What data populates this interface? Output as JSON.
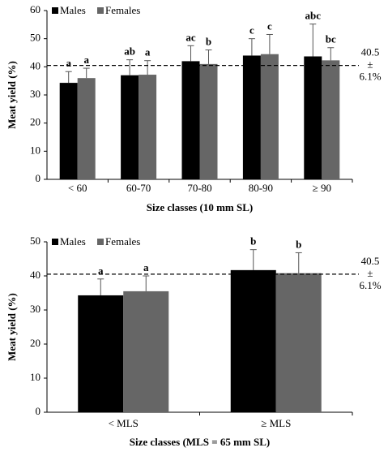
{
  "chart_data": [
    {
      "type": "bar",
      "y_label": "Meat yield (%)",
      "x_label": "Size classes  (10 mm SL)",
      "categories": [
        "< 60",
        "60-70",
        "70-80",
        "80-90",
        "≥ 90"
      ],
      "series": [
        {
          "name": "Males",
          "color": "#000000",
          "values": [
            34.3,
            37,
            42,
            44,
            43.7
          ],
          "errors": [
            4,
            5.5,
            5.5,
            6,
            11.5
          ],
          "letters": [
            "a",
            "ab",
            "ac",
            "c",
            "abc"
          ]
        },
        {
          "name": "Females",
          "color": "#666666",
          "values": [
            36,
            37.2,
            41,
            44.5,
            42.3
          ],
          "errors": [
            3.5,
            5,
            5,
            7,
            4.5
          ],
          "letters": [
            "a",
            "a",
            "b",
            "c",
            "bc"
          ]
        }
      ],
      "ylim": [
        0,
        60
      ],
      "yticks": [
        0,
        10,
        20,
        30,
        40,
        50,
        60
      ],
      "reference_line": 40.5,
      "reference_label": [
        "40.5",
        "±",
        "6.1%"
      ],
      "legend": "top-left"
    },
    {
      "type": "bar",
      "y_label": "Meat yield (%)",
      "x_label": "Size classes (MLS = 65 mm SL)",
      "categories": [
        "< MLS",
        "≥ MLS"
      ],
      "series": [
        {
          "name": "Males",
          "color": "#000000",
          "values": [
            34.3,
            41.7
          ],
          "errors": [
            4.8,
            6
          ],
          "letters": [
            "a",
            "b"
          ]
        },
        {
          "name": "Females",
          "color": "#666666",
          "values": [
            35.5,
            40.8
          ],
          "errors": [
            4.5,
            6
          ],
          "letters": [
            "a",
            "b"
          ]
        }
      ],
      "ylim": [
        0,
        50
      ],
      "yticks": [
        0,
        10,
        20,
        30,
        40,
        50
      ],
      "reference_line": 40.5,
      "reference_label": [
        "40.5",
        "±",
        "6.1%"
      ],
      "legend": "top-left"
    }
  ]
}
